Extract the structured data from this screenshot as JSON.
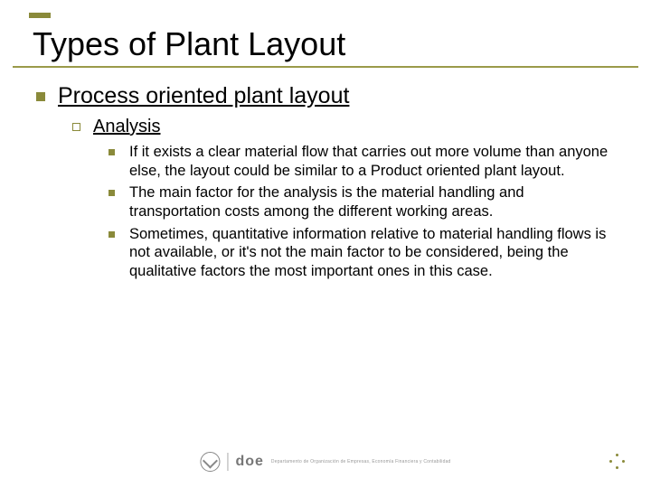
{
  "accent_color": "#8a8a3a",
  "title": "Types of Plant Layout",
  "lvl1": {
    "text": "Process oriented plant layout"
  },
  "lvl2": {
    "text": "Analysis"
  },
  "lvl3_items": [
    "If it exists a clear material flow that carries out more volume than anyone else, the layout could be similar to a Product oriented plant layout.",
    "The main factor for the analysis is the material handling and transportation costs among the different working areas.",
    "Sometimes, quantitative information relative to material handling flows is not available, or it's not the main factor to be considered, being the qualitative factors the most important ones in this case."
  ],
  "footer": {
    "logo_text": "doe",
    "logo_sub": "Departamento de Organización de Empresas, Economía Financiera y Contabilidad"
  }
}
